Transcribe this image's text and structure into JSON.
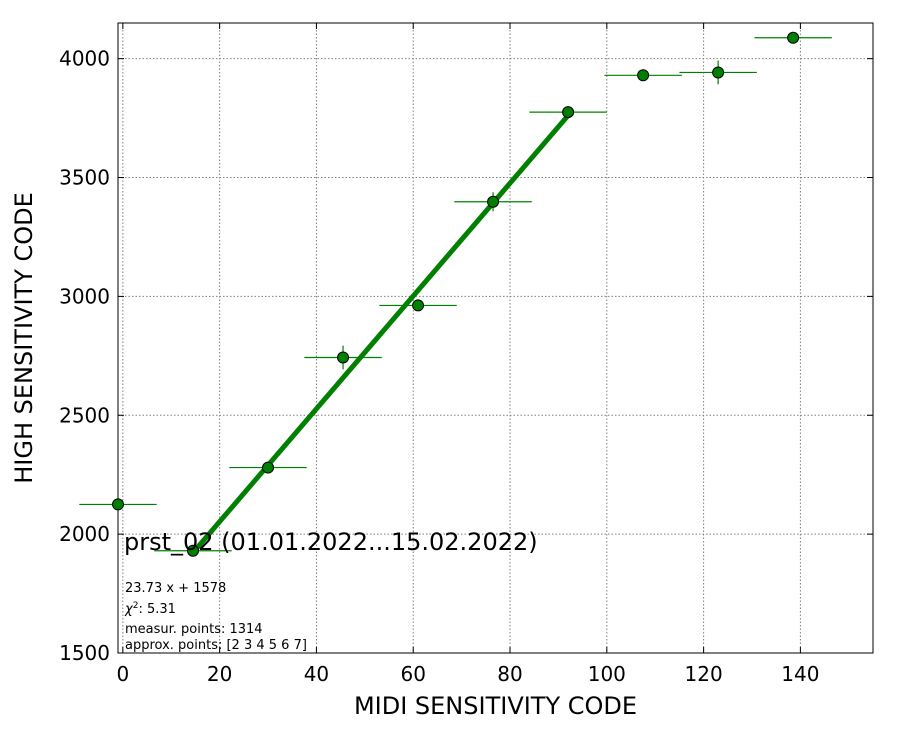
{
  "chart_data": {
    "type": "scatter",
    "title": "prst_02 (01.01.2022...15.02.2022)",
    "xlabel": "MIDI SENSITIVITY CODE",
    "ylabel": "HIGH SENSITIVITY CODE",
    "xlim": [
      -1,
      155
    ],
    "ylim": [
      1500,
      4150
    ],
    "xticks": [
      0,
      20,
      40,
      60,
      80,
      100,
      120,
      140
    ],
    "yticks": [
      1500,
      2000,
      2500,
      3000,
      3500,
      4000
    ],
    "grid": true,
    "colors": {
      "points": "#008000",
      "fit_line": "#008000",
      "grid": "#808080"
    },
    "series": [
      {
        "kind": "points-with-errorbars",
        "x": [
          -1,
          14.5,
          30,
          45.5,
          61,
          76.5,
          92,
          107.5,
          123,
          138.5
        ],
        "y": [
          2125,
          1930,
          2280,
          2743,
          2962,
          3398,
          3775,
          3930,
          3942,
          4088
        ],
        "xerr": [
          8,
          8,
          8,
          8,
          8,
          8,
          8,
          8,
          8,
          8
        ],
        "yerr": [
          5,
          8,
          10,
          50,
          20,
          40,
          15,
          10,
          50,
          15
        ]
      },
      {
        "kind": "fit-line",
        "x": [
          14.5,
          92
        ],
        "y": [
          1922,
          3761
        ]
      }
    ],
    "annotations": {
      "fit": "23.73 x + 1578",
      "chi2_value": "5.31",
      "measured": "measur. points: 1314",
      "approx": "approx. points: [2 3 4 5 6 7]"
    }
  }
}
